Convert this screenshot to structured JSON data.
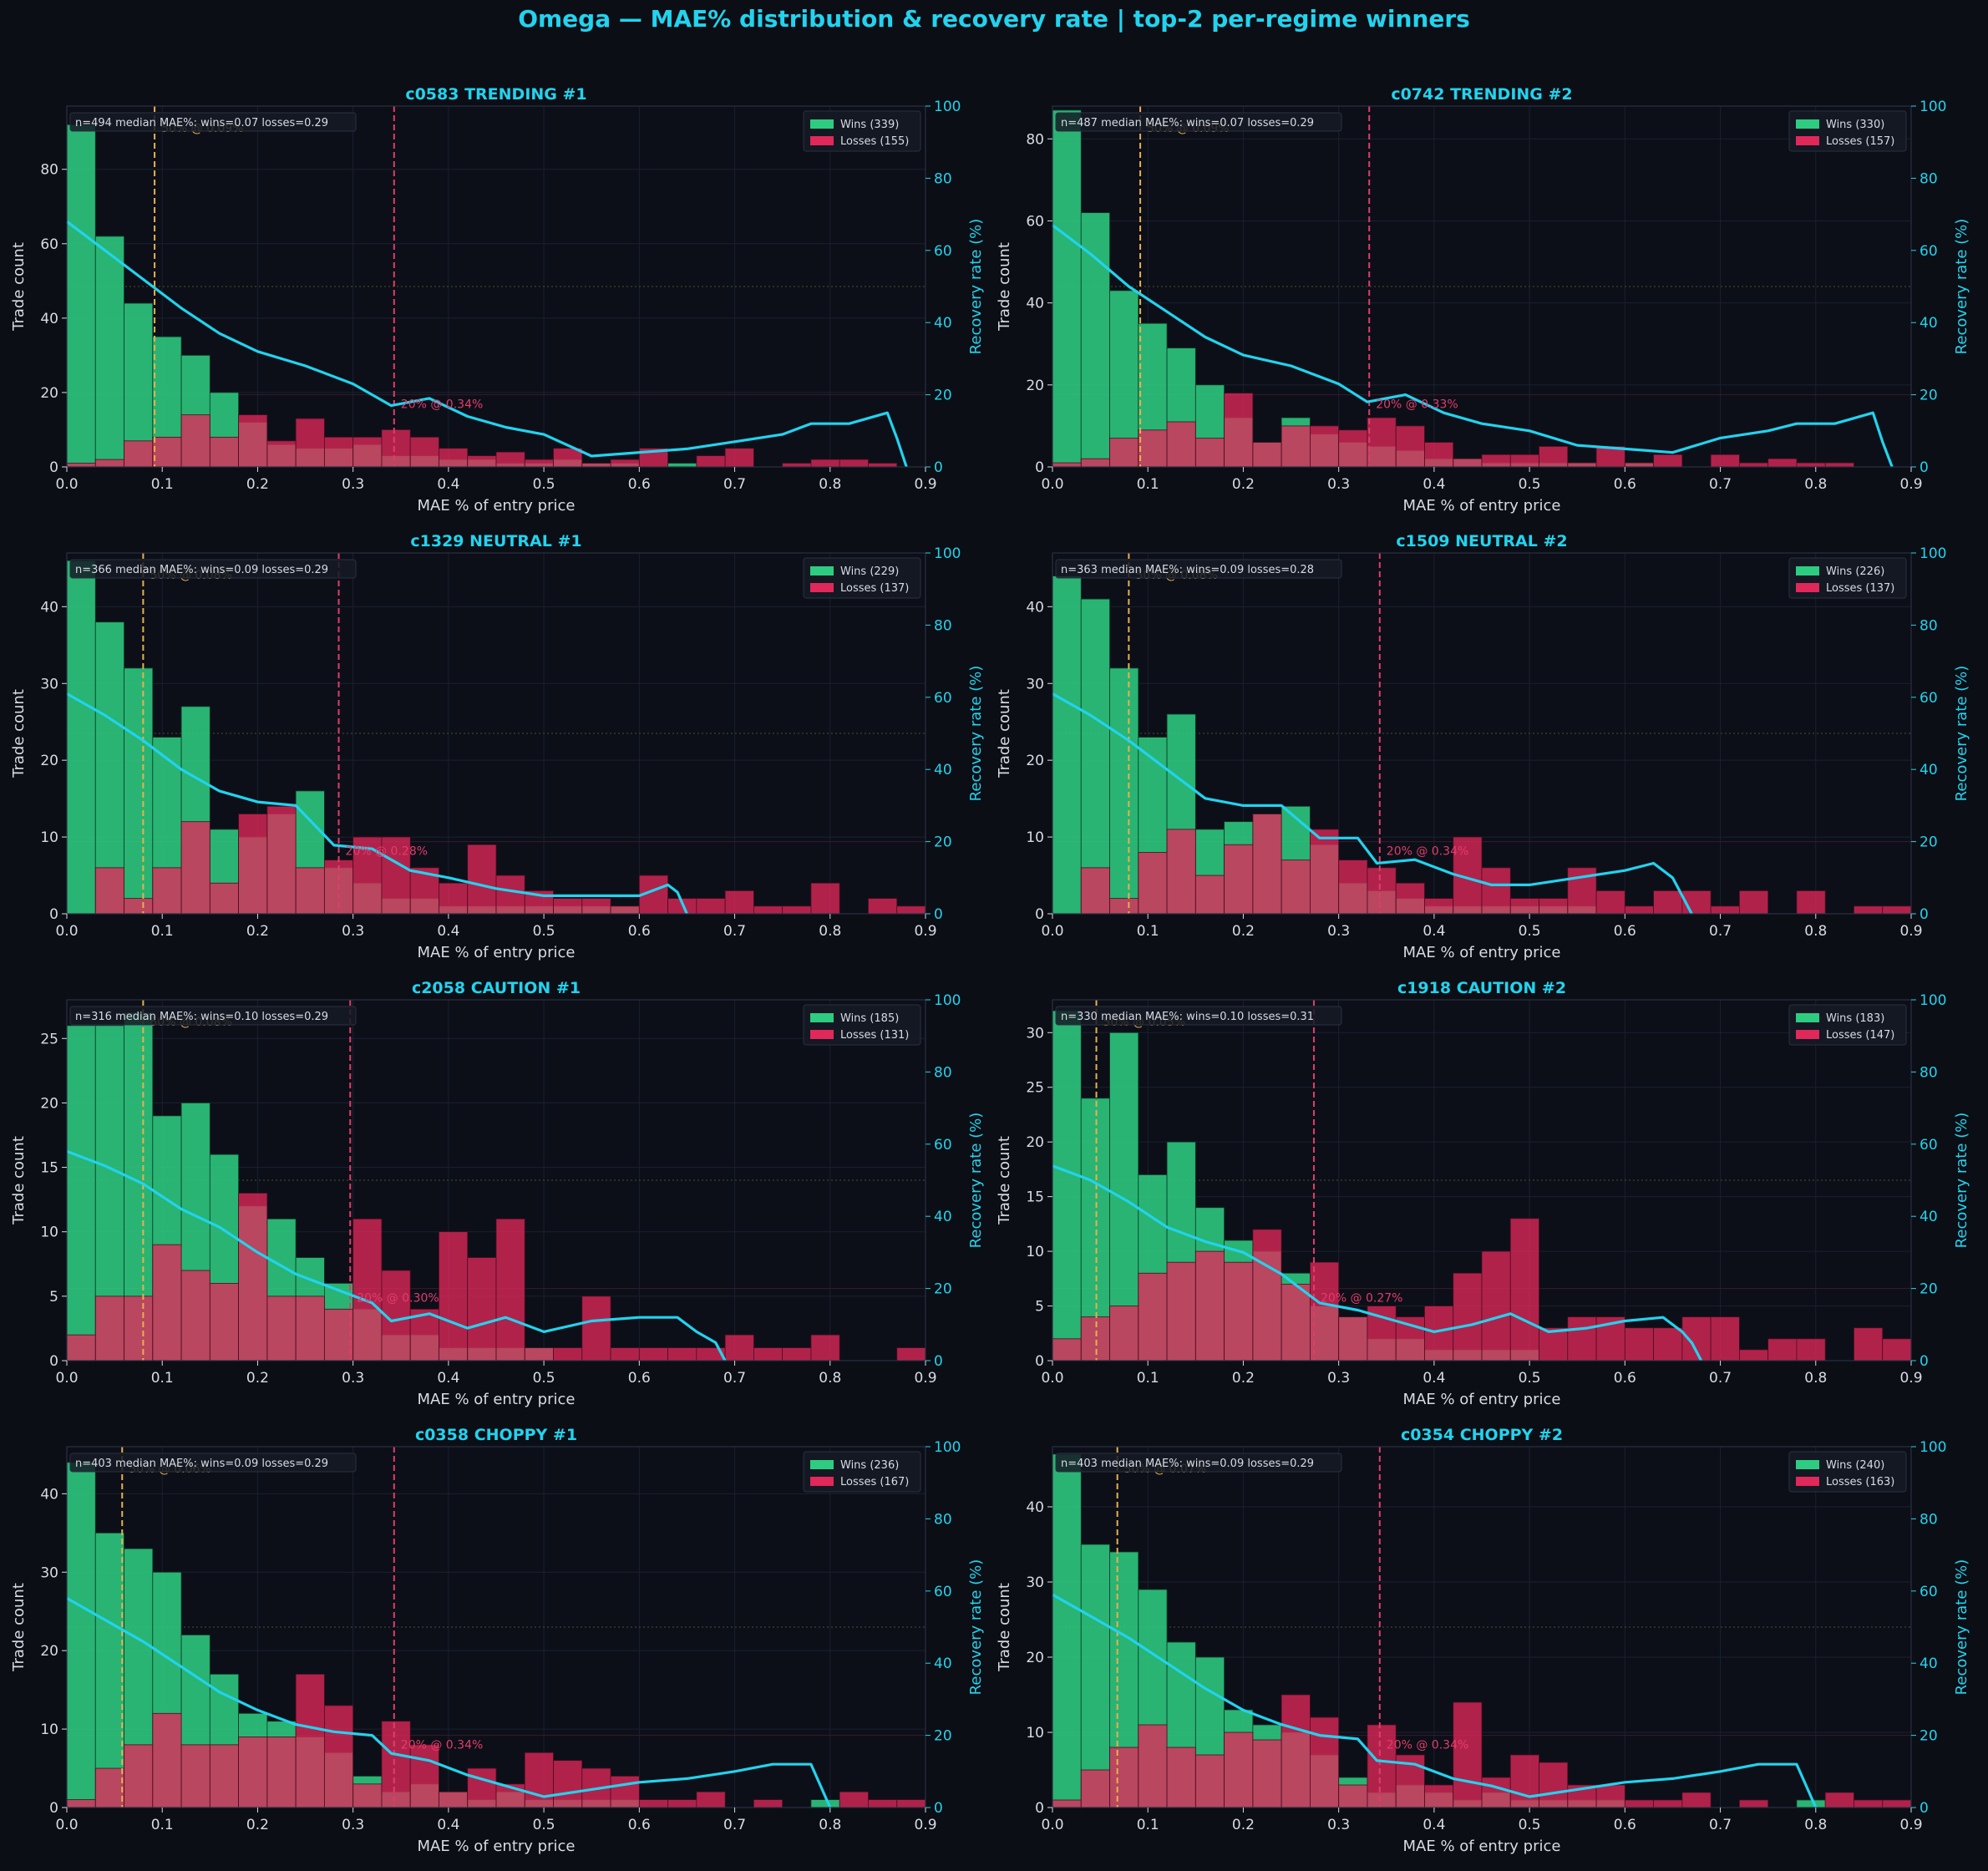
{
  "figure_title": "Omega — MAE% distribution & recovery rate  |  top-2 per-regime winners",
  "colors": {
    "background": "#0b0e15",
    "panel": "#0c0f18",
    "wins": "#2ecc80",
    "losses": "#e0285a",
    "recovery": "#22d3ee",
    "median_line": "#e8b04b",
    "p20_line": "#e23c6a",
    "text": "#d7dbe3",
    "accent": "#22d3ee"
  },
  "chart_data": [
    {
      "type": "bar",
      "title": "c0583  TRENDING #1",
      "xlabel": "MAE % of entry price",
      "ylabel": "Trade count",
      "y2label": "Recovery rate (%)",
      "xlim": [
        0,
        0.9
      ],
      "ylim": [
        0,
        97
      ],
      "y2lim": [
        0,
        100
      ],
      "xticks": [
        "0.0",
        "0.1",
        "0.2",
        "0.3",
        "0.4",
        "0.5",
        "0.6",
        "0.7",
        "0.8",
        "0.9"
      ],
      "yticks": [
        0,
        20,
        40,
        60,
        80
      ],
      "y2ticks": [
        0,
        20,
        40,
        60,
        80,
        100
      ],
      "bin_width": 0.03,
      "stats_text": "n=494  median MAE%: wins=0.07  losses=0.29",
      "legend": {
        "wins": "Wins (339)",
        "losses": "Losses (155)"
      },
      "wins": [
        92,
        62,
        44,
        35,
        30,
        20,
        12,
        6,
        5,
        5,
        6,
        3,
        3,
        2,
        2,
        1,
        1,
        2,
        1,
        1,
        0,
        1,
        0,
        0,
        0,
        0,
        0,
        0,
        0,
        0
      ],
      "losses": [
        1,
        2,
        7,
        8,
        14,
        8,
        14,
        7,
        13,
        8,
        8,
        10,
        8,
        5,
        3,
        4,
        2,
        5,
        1,
        2,
        5,
        0,
        3,
        5,
        0,
        1,
        2,
        2,
        1,
        0
      ],
      "recovery_x": [
        0,
        0.04,
        0.08,
        0.12,
        0.16,
        0.2,
        0.25,
        0.3,
        0.34,
        0.38,
        0.42,
        0.46,
        0.5,
        0.55,
        0.6,
        0.65,
        0.7,
        0.75,
        0.78,
        0.82,
        0.86,
        0.87,
        0.88
      ],
      "recovery_y": [
        68,
        60,
        52,
        44,
        37,
        32,
        28,
        23,
        17,
        19,
        14,
        11,
        9,
        3,
        4,
        5,
        7,
        9,
        12,
        12,
        15,
        8,
        0
      ],
      "median_x": 0.092,
      "median_label": "50% @ 0.09%",
      "p20_x": 0.343,
      "p20_label": "20% @ 0.34%"
    },
    {
      "type": "bar",
      "title": "c0742  TRENDING #2",
      "xlabel": "MAE % of entry price",
      "ylabel": "Trade count",
      "y2label": "Recovery rate (%)",
      "xlim": [
        0,
        0.9
      ],
      "ylim": [
        0,
        88
      ],
      "y2lim": [
        0,
        100
      ],
      "xticks": [
        "0.0",
        "0.1",
        "0.2",
        "0.3",
        "0.4",
        "0.5",
        "0.6",
        "0.7",
        "0.8",
        "0.9"
      ],
      "yticks": [
        0,
        20,
        40,
        60,
        80
      ],
      "y2ticks": [
        0,
        20,
        40,
        60,
        80,
        100
      ],
      "bin_width": 0.03,
      "stats_text": "n=487  median MAE%: wins=0.07  losses=0.29",
      "legend": {
        "wins": "Wins (330)",
        "losses": "Losses (157)"
      },
      "wins": [
        87,
        62,
        43,
        35,
        29,
        20,
        12,
        6,
        12,
        8,
        6,
        5,
        4,
        2,
        2,
        1,
        1,
        1,
        1,
        0,
        1,
        0,
        0,
        0,
        0,
        0,
        0,
        0,
        0,
        0
      ],
      "losses": [
        1,
        2,
        7,
        9,
        11,
        7,
        18,
        6,
        10,
        10,
        9,
        12,
        10,
        6,
        2,
        3,
        3,
        5,
        1,
        5,
        1,
        3,
        0,
        3,
        1,
        2,
        1,
        1,
        0,
        0
      ],
      "recovery_x": [
        0,
        0.04,
        0.08,
        0.12,
        0.16,
        0.2,
        0.25,
        0.3,
        0.33,
        0.37,
        0.41,
        0.45,
        0.5,
        0.55,
        0.6,
        0.65,
        0.7,
        0.75,
        0.78,
        0.82,
        0.86,
        0.87,
        0.88
      ],
      "recovery_y": [
        67,
        59,
        50,
        43,
        36,
        31,
        28,
        23,
        18,
        20,
        15,
        12,
        10,
        6,
        5,
        4,
        8,
        10,
        12,
        12,
        15,
        7,
        0
      ],
      "median_x": 0.092,
      "median_label": "50% @ 0.09%",
      "p20_x": 0.332,
      "p20_label": "20% @ 0.33%"
    },
    {
      "type": "bar",
      "title": "c1329  NEUTRAL #1",
      "xlabel": "MAE % of entry price",
      "ylabel": "Trade count",
      "y2label": "Recovery rate (%)",
      "xlim": [
        0,
        0.9
      ],
      "ylim": [
        0,
        47
      ],
      "y2lim": [
        0,
        100
      ],
      "xticks": [
        "0.0",
        "0.1",
        "0.2",
        "0.3",
        "0.4",
        "0.5",
        "0.6",
        "0.7",
        "0.8",
        "0.9"
      ],
      "yticks": [
        0,
        10,
        20,
        30,
        40
      ],
      "y2ticks": [
        0,
        20,
        40,
        60,
        80,
        100
      ],
      "bin_width": 0.03,
      "stats_text": "n=366  median MAE%: wins=0.09  losses=0.29",
      "legend": {
        "wins": "Wins (229)",
        "losses": "Losses (137)"
      },
      "wins": [
        46,
        38,
        32,
        23,
        27,
        11,
        10,
        13,
        16,
        6,
        4,
        2,
        2,
        1,
        1,
        1,
        1,
        1,
        1,
        1,
        0,
        0,
        0,
        0,
        0,
        0,
        0,
        0,
        0,
        0
      ],
      "losses": [
        0,
        6,
        2,
        6,
        12,
        4,
        13,
        14,
        6,
        7,
        10,
        10,
        6,
        4,
        9,
        5,
        3,
        2,
        2,
        1,
        5,
        2,
        2,
        3,
        1,
        1,
        4,
        0,
        2,
        1
      ],
      "recovery_x": [
        0,
        0.04,
        0.08,
        0.12,
        0.16,
        0.2,
        0.24,
        0.28,
        0.32,
        0.36,
        0.4,
        0.45,
        0.5,
        0.55,
        0.6,
        0.63,
        0.64,
        0.65
      ],
      "recovery_y": [
        61,
        55,
        48,
        40,
        34,
        31,
        30,
        19,
        18,
        12,
        10,
        7,
        5,
        5,
        5,
        8,
        6,
        0
      ],
      "median_x": 0.08,
      "median_label": "50% @ 0.08%",
      "p20_x": 0.285,
      "p20_label": "20% @ 0.28%"
    },
    {
      "type": "bar",
      "title": "c1509  NEUTRAL #2",
      "xlabel": "MAE % of entry price",
      "ylabel": "Trade count",
      "y2label": "Recovery rate (%)",
      "xlim": [
        0,
        0.9
      ],
      "ylim": [
        0,
        47
      ],
      "y2lim": [
        0,
        100
      ],
      "xticks": [
        "0.0",
        "0.1",
        "0.2",
        "0.3",
        "0.4",
        "0.5",
        "0.6",
        "0.7",
        "0.8",
        "0.9"
      ],
      "yticks": [
        0,
        10,
        20,
        30,
        40
      ],
      "y2ticks": [
        0,
        20,
        40,
        60,
        80,
        100
      ],
      "bin_width": 0.03,
      "stats_text": "n=363  median MAE%: wins=0.09  losses=0.28",
      "legend": {
        "wins": "Wins (226)",
        "losses": "Losses (137)"
      },
      "wins": [
        44,
        41,
        32,
        23,
        26,
        11,
        12,
        13,
        14,
        9,
        4,
        3,
        2,
        1,
        1,
        1,
        1,
        1,
        1,
        0,
        0,
        0,
        0,
        0,
        0,
        0,
        0,
        0,
        0,
        0
      ],
      "losses": [
        0,
        6,
        2,
        8,
        11,
        5,
        9,
        13,
        7,
        11,
        7,
        6,
        4,
        2,
        10,
        6,
        2,
        2,
        6,
        3,
        1,
        3,
        3,
        1,
        3,
        0,
        3,
        0,
        1,
        1
      ],
      "recovery_x": [
        0,
        0.04,
        0.08,
        0.12,
        0.16,
        0.2,
        0.24,
        0.28,
        0.32,
        0.34,
        0.38,
        0.42,
        0.46,
        0.5,
        0.55,
        0.6,
        0.63,
        0.65,
        0.66,
        0.67
      ],
      "recovery_y": [
        61,
        55,
        48,
        40,
        32,
        30,
        30,
        21,
        21,
        14,
        15,
        11,
        8,
        8,
        10,
        12,
        14,
        10,
        5,
        0
      ],
      "median_x": 0.08,
      "median_label": "50% @ 0.08%",
      "p20_x": 0.343,
      "p20_label": "20% @ 0.34%"
    },
    {
      "type": "bar",
      "title": "c2058  CAUTION #1",
      "xlabel": "MAE % of entry price",
      "ylabel": "Trade count",
      "y2label": "Recovery rate (%)",
      "xlim": [
        0,
        0.9
      ],
      "ylim": [
        0,
        28
      ],
      "y2lim": [
        0,
        100
      ],
      "xticks": [
        "0.0",
        "0.1",
        "0.2",
        "0.3",
        "0.4",
        "0.5",
        "0.6",
        "0.7",
        "0.8",
        "0.9"
      ],
      "yticks": [
        0,
        5,
        10,
        15,
        20,
        25
      ],
      "y2ticks": [
        0,
        20,
        40,
        60,
        80,
        100
      ],
      "bin_width": 0.03,
      "stats_text": "n=316  median MAE%: wins=0.10  losses=0.29",
      "legend": {
        "wins": "Wins (185)",
        "losses": "Losses (131)"
      },
      "wins": [
        26,
        26,
        27,
        19,
        20,
        16,
        12,
        11,
        8,
        6,
        4,
        2,
        2,
        1,
        1,
        1,
        1,
        0,
        0,
        0,
        0,
        0,
        0,
        0,
        0,
        0,
        0,
        0,
        0,
        0
      ],
      "losses": [
        2,
        5,
        5,
        9,
        7,
        6,
        13,
        5,
        5,
        4,
        11,
        7,
        4,
        10,
        8,
        11,
        1,
        1,
        5,
        1,
        1,
        1,
        1,
        2,
        1,
        1,
        2,
        0,
        0,
        1
      ],
      "recovery_x": [
        0,
        0.04,
        0.08,
        0.12,
        0.16,
        0.2,
        0.24,
        0.28,
        0.32,
        0.34,
        0.38,
        0.42,
        0.46,
        0.5,
        0.55,
        0.6,
        0.64,
        0.66,
        0.68,
        0.69
      ],
      "recovery_y": [
        58,
        54,
        49,
        42,
        37,
        30,
        24,
        20,
        16,
        11,
        13,
        9,
        12,
        8,
        11,
        12,
        12,
        8,
        5,
        0
      ],
      "median_x": 0.08,
      "median_label": "50% @ 0.08%",
      "p20_x": 0.297,
      "p20_label": "20% @ 0.30%"
    },
    {
      "type": "bar",
      "title": "c1918  CAUTION #2",
      "xlabel": "MAE % of entry price",
      "ylabel": "Trade count",
      "y2label": "Recovery rate (%)",
      "xlim": [
        0,
        0.9
      ],
      "ylim": [
        0,
        33
      ],
      "y2lim": [
        0,
        100
      ],
      "xticks": [
        "0.0",
        "0.1",
        "0.2",
        "0.3",
        "0.4",
        "0.5",
        "0.6",
        "0.7",
        "0.8",
        "0.9"
      ],
      "yticks": [
        0,
        5,
        10,
        15,
        20,
        25,
        30
      ],
      "y2ticks": [
        0,
        20,
        40,
        60,
        80,
        100
      ],
      "bin_width": 0.03,
      "stats_text": "n=330  median MAE%: wins=0.10  losses=0.31",
      "legend": {
        "wins": "Wins (183)",
        "losses": "Losses (147)"
      },
      "wins": [
        32,
        24,
        30,
        17,
        20,
        14,
        11,
        10,
        8,
        5,
        4,
        2,
        2,
        1,
        1,
        1,
        1,
        0,
        0,
        0,
        0,
        0,
        0,
        0,
        0,
        0,
        0,
        0,
        0,
        0
      ],
      "losses": [
        2,
        4,
        5,
        8,
        9,
        10,
        9,
        12,
        7,
        9,
        4,
        5,
        4,
        5,
        8,
        10,
        13,
        3,
        4,
        4,
        3,
        3,
        4,
        4,
        1,
        2,
        2,
        0,
        3,
        2
      ],
      "recovery_x": [
        0,
        0.04,
        0.08,
        0.12,
        0.16,
        0.2,
        0.24,
        0.28,
        0.32,
        0.36,
        0.4,
        0.44,
        0.48,
        0.52,
        0.56,
        0.6,
        0.64,
        0.66,
        0.67,
        0.68
      ],
      "recovery_y": [
        54,
        50,
        44,
        37,
        33,
        30,
        24,
        16,
        14,
        11,
        8,
        10,
        13,
        8,
        9,
        11,
        12,
        8,
        5,
        0
      ],
      "median_x": 0.046,
      "median_label": "50% @ 0.05%",
      "p20_x": 0.274,
      "p20_label": "20% @ 0.27%"
    },
    {
      "type": "bar",
      "title": "c0358  CHOPPY #1",
      "xlabel": "MAE % of entry price",
      "ylabel": "Trade count",
      "y2label": "Recovery rate (%)",
      "xlim": [
        0,
        0.9
      ],
      "ylim": [
        0,
        46
      ],
      "y2lim": [
        0,
        100
      ],
      "xticks": [
        "0.0",
        "0.1",
        "0.2",
        "0.3",
        "0.4",
        "0.5",
        "0.6",
        "0.7",
        "0.8",
        "0.9"
      ],
      "yticks": [
        0,
        10,
        20,
        30,
        40
      ],
      "y2ticks": [
        0,
        20,
        40,
        60,
        80,
        100
      ],
      "bin_width": 0.03,
      "stats_text": "n=403  median MAE%: wins=0.09  losses=0.29",
      "legend": {
        "wins": "Wins (236)",
        "losses": "Losses (167)"
      },
      "wins": [
        44,
        35,
        33,
        30,
        22,
        17,
        12,
        11,
        9,
        7,
        4,
        2,
        3,
        2,
        1,
        2,
        1,
        1,
        1,
        1,
        0,
        0,
        0,
        0,
        0,
        0,
        1,
        0,
        0,
        0
      ],
      "losses": [
        1,
        5,
        8,
        12,
        8,
        8,
        9,
        9,
        17,
        13,
        3,
        11,
        8,
        2,
        5,
        3,
        7,
        6,
        5,
        4,
        1,
        1,
        2,
        0,
        1,
        0,
        0,
        2,
        1,
        1
      ],
      "recovery_x": [
        0,
        0.04,
        0.08,
        0.12,
        0.16,
        0.2,
        0.24,
        0.28,
        0.32,
        0.34,
        0.38,
        0.42,
        0.46,
        0.5,
        0.55,
        0.6,
        0.65,
        0.7,
        0.74,
        0.78,
        0.79,
        0.8
      ],
      "recovery_y": [
        58,
        52,
        46,
        39,
        32,
        27,
        23,
        21,
        20,
        15,
        13,
        9,
        6,
        3,
        5,
        7,
        8,
        10,
        12,
        12,
        6,
        0
      ],
      "median_x": 0.058,
      "median_label": "50% @ 0.06%",
      "p20_x": 0.343,
      "p20_label": "20% @ 0.34%"
    },
    {
      "type": "bar",
      "title": "c0354  CHOPPY #2",
      "xlabel": "MAE % of entry price",
      "ylabel": "Trade count",
      "y2label": "Recovery rate (%)",
      "xlim": [
        0,
        0.9
      ],
      "ylim": [
        0,
        48
      ],
      "y2lim": [
        0,
        100
      ],
      "xticks": [
        "0.0",
        "0.1",
        "0.2",
        "0.3",
        "0.4",
        "0.5",
        "0.6",
        "0.7",
        "0.8",
        "0.9"
      ],
      "yticks": [
        0,
        10,
        20,
        30,
        40
      ],
      "y2ticks": [
        0,
        20,
        40,
        60,
        80,
        100
      ],
      "bin_width": 0.03,
      "stats_text": "n=403  median MAE%: wins=0.09  losses=0.29",
      "legend": {
        "wins": "Wins (240)",
        "losses": "Losses (163)"
      },
      "wins": [
        47,
        35,
        34,
        29,
        22,
        20,
        13,
        11,
        10,
        7,
        4,
        2,
        3,
        2,
        1,
        2,
        1,
        1,
        1,
        1,
        0,
        0,
        0,
        0,
        0,
        0,
        1,
        0,
        0,
        0
      ],
      "losses": [
        1,
        5,
        8,
        11,
        8,
        7,
        10,
        9,
        15,
        12,
        3,
        11,
        7,
        3,
        14,
        4,
        7,
        6,
        3,
        3,
        1,
        1,
        2,
        0,
        1,
        0,
        0,
        2,
        1,
        1
      ],
      "recovery_x": [
        0,
        0.04,
        0.08,
        0.12,
        0.16,
        0.2,
        0.24,
        0.28,
        0.32,
        0.34,
        0.38,
        0.42,
        0.46,
        0.5,
        0.55,
        0.6,
        0.65,
        0.7,
        0.74,
        0.78,
        0.79,
        0.8
      ],
      "recovery_y": [
        59,
        53,
        47,
        40,
        33,
        27,
        23,
        20,
        19,
        13,
        12,
        8,
        6,
        3,
        5,
        7,
        8,
        10,
        12,
        12,
        6,
        0
      ],
      "median_x": 0.068,
      "median_label": "50% @ 0.07%",
      "p20_x": 0.343,
      "p20_label": "20% @ 0.34%"
    }
  ]
}
